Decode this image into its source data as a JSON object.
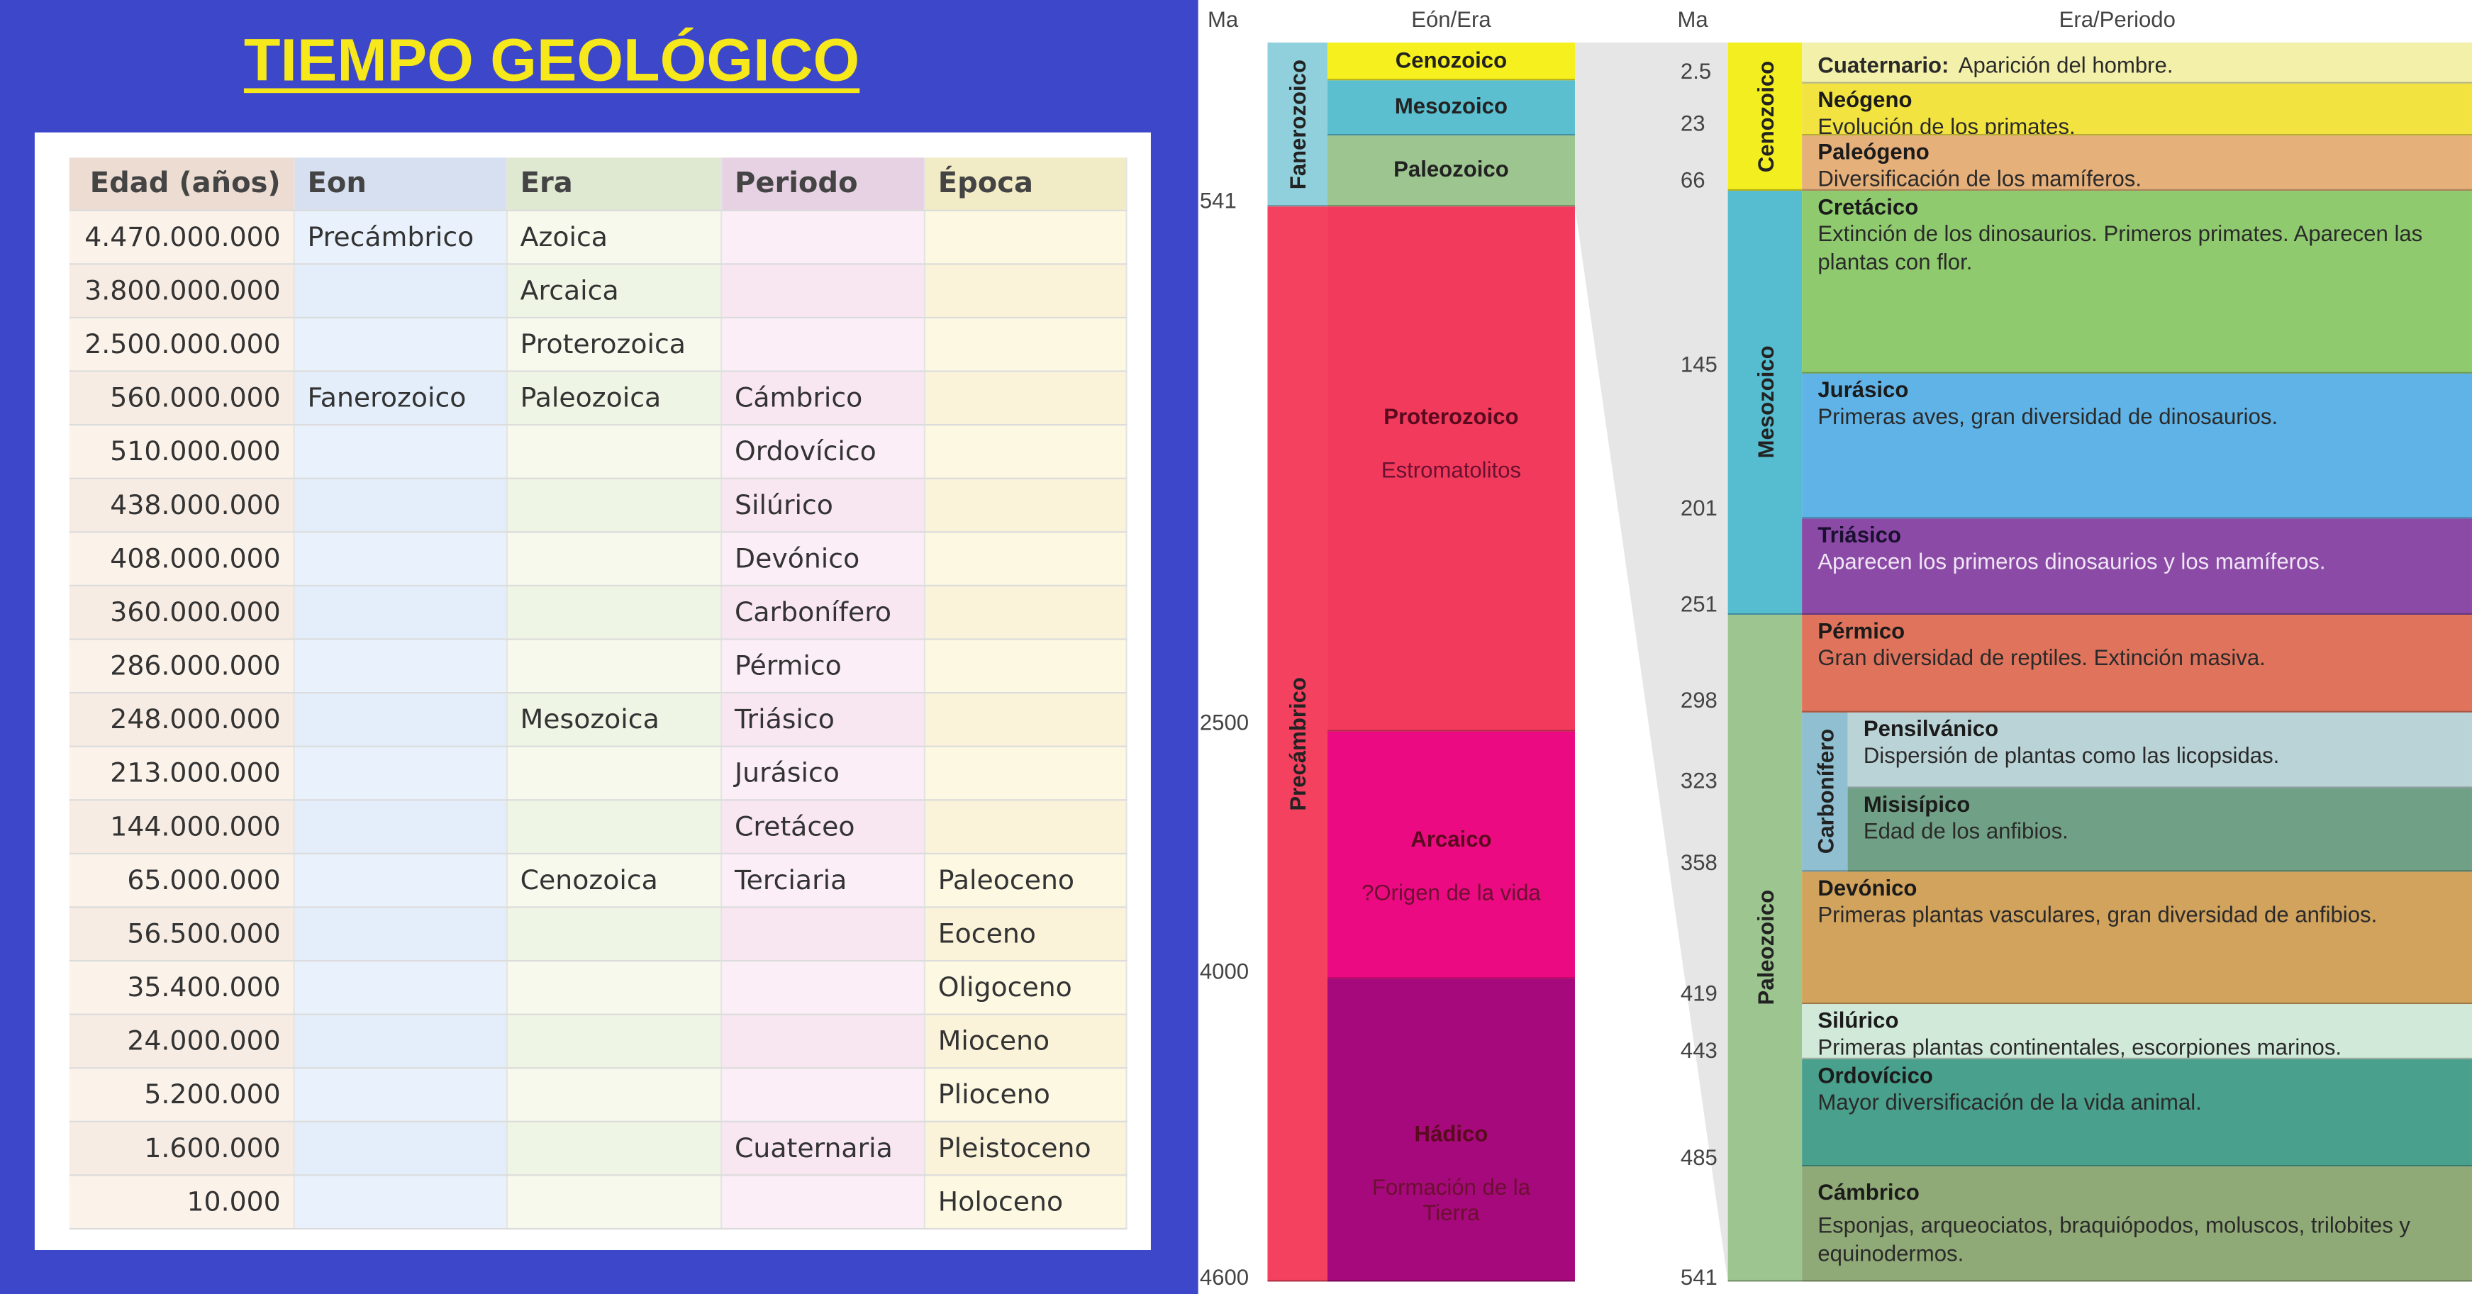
{
  "left_panel": {
    "title": "TIEMPO GEOLÓGICO",
    "table": {
      "headers": [
        "Edad (años)",
        "Eon",
        "Era",
        "Periodo",
        "Época"
      ],
      "rows": [
        [
          "4.470.000.000",
          "Precámbrico",
          "Azoica",
          "",
          ""
        ],
        [
          "3.800.000.000",
          "",
          "Arcaica",
          "",
          ""
        ],
        [
          "2.500.000.000",
          "",
          "Proterozoica",
          "",
          ""
        ],
        [
          "560.000.000",
          "Fanerozoico",
          "Paleozoica",
          "Cámbrico",
          ""
        ],
        [
          "510.000.000",
          "",
          "",
          "Ordovícico",
          ""
        ],
        [
          "438.000.000",
          "",
          "",
          "Silúrico",
          ""
        ],
        [
          "408.000.000",
          "",
          "",
          "Devónico",
          ""
        ],
        [
          "360.000.000",
          "",
          "",
          "Carbonífero",
          ""
        ],
        [
          "286.000.000",
          "",
          "",
          "Pérmico",
          ""
        ],
        [
          "248.000.000",
          "",
          "Mesozoica",
          "Triásico",
          ""
        ],
        [
          "213.000.000",
          "",
          "",
          "Jurásico",
          ""
        ],
        [
          "144.000.000",
          "",
          "",
          "Cretáceo",
          ""
        ],
        [
          "65.000.000",
          "",
          "Cenozoica",
          "Terciaria",
          "Paleoceno"
        ],
        [
          "56.500.000",
          "",
          "",
          "",
          "Eoceno"
        ],
        [
          "35.400.000",
          "",
          "",
          "",
          "Oligoceno"
        ],
        [
          "24.000.000",
          "",
          "",
          "",
          "Mioceno"
        ],
        [
          "5.200.000",
          "",
          "",
          "",
          "Plioceno"
        ],
        [
          "1.600.000",
          "",
          "",
          "Cuaternaria",
          "Pleistoceno"
        ],
        [
          "10.000",
          "",
          "",
          "",
          "Holoceno"
        ]
      ]
    }
  },
  "right_panel": {
    "ma_label_left": "Ma",
    "eon_era_header": "Eón/Era",
    "ma_label_right": "Ma",
    "era_period_header": "Era/Periodo",
    "left_ticks": [
      "541",
      "2500",
      "4000",
      "4600"
    ],
    "right_ticks": [
      "2.5",
      "23",
      "66",
      "145",
      "201",
      "251",
      "298",
      "323",
      "358",
      "419",
      "443",
      "485",
      "541"
    ],
    "eons": [
      {
        "name": "Fanerozoico",
        "color": "#8fd0dc"
      },
      {
        "name": "Precámbrico",
        "color": "#f3415f"
      }
    ],
    "eras_left": [
      {
        "name": "Cenozoico",
        "sub": "",
        "color": "#f6f01f"
      },
      {
        "name": "Mesozoico",
        "sub": "",
        "color": "#5bbfcf"
      },
      {
        "name": "Paleozoico",
        "sub": "",
        "color": "#9dc58f"
      },
      {
        "name": "Proterozoico",
        "sub": "Estromatolitos",
        "color": "#f23a5c"
      },
      {
        "name": "Arcaico",
        "sub": "?Origen de la vida",
        "color": "#ec0a82"
      },
      {
        "name": "Hádico",
        "sub": "Formación de la Tierra",
        "color": "#a6097b"
      }
    ],
    "eras_right": [
      {
        "name": "Cenozoico",
        "color": "#f3ee1f"
      },
      {
        "name": "Mesozoico",
        "color": "#56bdd0"
      },
      {
        "name": "Paleozoico",
        "color": "#9dc58f"
      }
    ],
    "carbonifero_label": {
      "name": "Carbonífero",
      "color": "#8fbfd0"
    },
    "periods": [
      {
        "name": "Cuaternario:",
        "desc": "Aparición del hombre.",
        "color": "#f3f0aa",
        "inline": true
      },
      {
        "name": "Neógeno",
        "desc": "Evolución de los primates.",
        "color": "#f3e340"
      },
      {
        "name": "Paleógeno",
        "desc": "Diversificación de los mamíferos.",
        "color": "#e6b07b"
      },
      {
        "name": "Cretácico",
        "desc": "Extinción de los dinosaurios. Primeros primates. Aparecen las plantas con flor.",
        "color": "#8fcb6e"
      },
      {
        "name": "Jurásico",
        "desc": "Primeras aves, gran diversidad de dinosaurios.",
        "color": "#60b3e6"
      },
      {
        "name": "Triásico",
        "desc": "Aparecen los primeros dinosaurios y los mamíferos.",
        "color": "#8a4aa5"
      },
      {
        "name": "Pérmico",
        "desc": "Gran diversidad de reptiles. Extinción masiva.",
        "color": "#e0735b"
      },
      {
        "name": "Pensilvánico",
        "desc": "Dispersión de plantas como las licopsidas.",
        "color": "#bad3d6"
      },
      {
        "name": "Misisípico",
        "desc": "Edad de los anfibios.",
        "color": "#70a085"
      },
      {
        "name": "Devónico",
        "desc": "Primeras plantas vasculares, gran diversidad de anfibios.",
        "color": "#d2a35d"
      },
      {
        "name": "Silúrico",
        "desc": "Primeras plantas continentales, escorpiones marinos.",
        "color": "#d0e9d9"
      },
      {
        "name": "Ordovícico",
        "desc": "Mayor diversificación de la vida animal.",
        "color": "#49a08c"
      },
      {
        "name": "Cámbrico",
        "desc": "Esponjas, arqueociatos, braquiópodos, moluscos, trilobites y equinodermos.",
        "color": "#90aa77"
      }
    ]
  }
}
